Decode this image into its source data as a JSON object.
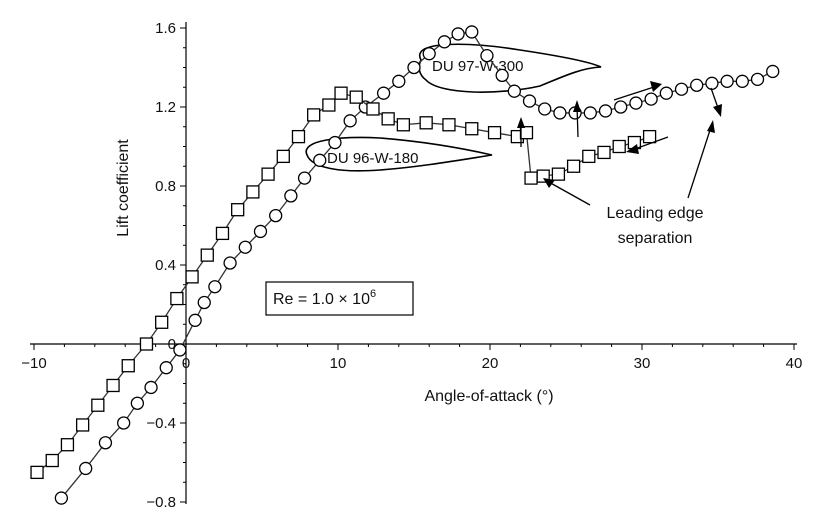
{
  "chart_data": {
    "type": "line",
    "xlabel": "Angle-of-attack (°)",
    "ylabel": "Lift coefficient",
    "xlim": [
      -10,
      40
    ],
    "ylim": [
      -0.8,
      1.6
    ],
    "x_ticks": [
      -10,
      0,
      10,
      20,
      30,
      40
    ],
    "x_tick_labels": [
      "−10",
      "0",
      "10",
      "20",
      "30",
      "40"
    ],
    "y_ticks": [
      -0.8,
      -0.4,
      0,
      0.4,
      0.8,
      1.2,
      1.6
    ],
    "y_tick_labels": [
      "−0.8",
      "−0.4",
      "0",
      "0.4",
      "0.8",
      "1.2",
      "1.6"
    ],
    "grid": false,
    "series": [
      {
        "marker": "circle",
        "label": "DU 97-W-300",
        "points": [
          [
            -8.3,
            -0.78
          ],
          [
            -7.3,
            -0.68
          ],
          [
            -6.3,
            -0.57
          ],
          [
            -5.3,
            -0.47
          ],
          [
            -4.3,
            -0.37
          ],
          [
            -3.3,
            -0.26
          ],
          [
            -2.3,
            -0.15
          ],
          [
            -1.3,
            -0.05
          ],
          [
            -0.3,
            0.06
          ],
          [
            0.7,
            0.16
          ],
          [
            1.7,
            0.26
          ],
          [
            2.7,
            0.38
          ],
          [
            3.7,
            0.49
          ],
          [
            4.7,
            0.6
          ],
          [
            5.7,
            0.71
          ],
          [
            6.7,
            0.82
          ],
          [
            7.6,
            0.93
          ],
          [
            8.6,
            1.04
          ],
          [
            9.6,
            1.14
          ],
          [
            10.6,
            1.21
          ],
          [
            11.6,
            1.27
          ],
          [
            12.4,
            1.33
          ],
          [
            13.3,
            1.36
          ],
          [
            14.2,
            1.38
          ],
          [
            15.2,
            1.43
          ],
          [
            16.1,
            1.51
          ],
          [
            17.1,
            1.57
          ],
          [
            18.1,
            1.57
          ],
          [
            19.1,
            1.42
          ],
          [
            20.1,
            1.32
          ],
          [
            21.1,
            1.25
          ],
          [
            22.1,
            1.2
          ],
          [
            23.1,
            1.18
          ],
          [
            24.1,
            1.17
          ],
          [
            25.1,
            1.17
          ],
          [
            26.1,
            1.18
          ],
          [
            27.1,
            1.19
          ],
          [
            28.1,
            1.2
          ],
          [
            29.1,
            1.22
          ],
          [
            30.1,
            1.24
          ],
          [
            31.1,
            1.26
          ],
          [
            32.1,
            1.28
          ],
          [
            33.1,
            1.3
          ],
          [
            34.1,
            1.31
          ],
          [
            35.1,
            1.32
          ],
          [
            36.1,
            1.32
          ],
          [
            37.1,
            1.33
          ],
          [
            38.1,
            1.33
          ],
          [
            39.1,
            1.34
          ]
        ],
        "circle_points": [
          [
            -8.2,
            -0.78
          ],
          [
            -6.6,
            -0.63
          ],
          [
            -5.3,
            -0.5
          ],
          [
            -4.1,
            -0.4
          ],
          [
            -3.2,
            -0.3
          ],
          [
            -2.3,
            -0.22
          ],
          [
            -1.3,
            -0.12
          ],
          [
            -0.4,
            -0.03
          ],
          [
            0.6,
            0.12
          ],
          [
            1.2,
            0.21
          ],
          [
            1.9,
            0.29
          ],
          [
            2.9,
            0.41
          ],
          [
            3.9,
            0.49
          ],
          [
            4.9,
            0.57
          ],
          [
            5.9,
            0.65
          ],
          [
            6.9,
            0.75
          ],
          [
            7.8,
            0.84
          ],
          [
            8.8,
            0.93
          ],
          [
            9.8,
            1.02
          ],
          [
            10.8,
            1.13
          ],
          [
            11.8,
            1.2
          ],
          [
            13.0,
            1.27
          ],
          [
            14.0,
            1.33
          ],
          [
            15.0,
            1.4
          ],
          [
            16.0,
            1.47
          ],
          [
            17.0,
            1.53
          ],
          [
            17.9,
            1.57
          ],
          [
            18.8,
            1.58
          ],
          [
            19.8,
            1.46
          ],
          [
            20.8,
            1.36
          ],
          [
            21.6,
            1.28
          ],
          [
            22.6,
            1.23
          ],
          [
            23.6,
            1.19
          ],
          [
            24.6,
            1.17
          ],
          [
            25.6,
            1.17
          ],
          [
            26.6,
            1.17
          ],
          [
            27.6,
            1.18
          ],
          [
            28.6,
            1.2
          ],
          [
            29.6,
            1.22
          ],
          [
            30.6,
            1.24
          ],
          [
            31.6,
            1.27
          ],
          [
            32.6,
            1.29
          ],
          [
            33.6,
            1.31
          ],
          [
            34.6,
            1.32
          ],
          [
            35.6,
            1.33
          ],
          [
            36.6,
            1.33
          ],
          [
            37.6,
            1.34
          ],
          [
            38.6,
            1.38
          ]
        ]
      },
      {
        "marker": "square",
        "label": "DU 96-W-180",
        "points": [
          [
            -9.8,
            -0.65
          ],
          [
            -8.8,
            -0.59
          ],
          [
            -7.8,
            -0.51
          ],
          [
            -6.8,
            -0.41
          ],
          [
            -5.8,
            -0.31
          ],
          [
            -4.8,
            -0.21
          ],
          [
            -3.8,
            -0.11
          ],
          [
            -2.6,
            0.0
          ],
          [
            -1.6,
            0.11
          ],
          [
            -0.6,
            0.23
          ],
          [
            0.4,
            0.34
          ],
          [
            1.4,
            0.45
          ],
          [
            2.4,
            0.56
          ],
          [
            3.4,
            0.68
          ],
          [
            4.4,
            0.77
          ],
          [
            5.4,
            0.86
          ],
          [
            6.4,
            0.95
          ],
          [
            7.4,
            1.05
          ],
          [
            8.4,
            1.16
          ],
          [
            9.4,
            1.21
          ],
          [
            10.2,
            1.27
          ],
          [
            11.2,
            1.25
          ],
          [
            12.3,
            1.19
          ],
          [
            13.3,
            1.14
          ],
          [
            14.3,
            1.11
          ],
          [
            15.8,
            1.12
          ],
          [
            17.3,
            1.11
          ],
          [
            18.8,
            1.09
          ],
          [
            20.3,
            1.07
          ],
          [
            21.8,
            1.05
          ],
          [
            22.4,
            1.07
          ],
          [
            22.7,
            0.84
          ],
          [
            23.5,
            0.85
          ],
          [
            24.5,
            0.86
          ],
          [
            25.5,
            0.9
          ],
          [
            26.5,
            0.95
          ],
          [
            27.5,
            0.97
          ],
          [
            28.5,
            1.0
          ],
          [
            29.5,
            1.02
          ],
          [
            30.5,
            1.05
          ]
        ]
      }
    ],
    "annotations": {
      "leading_edge_line1": "Leading edge",
      "leading_edge_line2": "separation",
      "re_prefix": "Re = 1.0 × 10",
      "re_exponent": "6"
    }
  }
}
